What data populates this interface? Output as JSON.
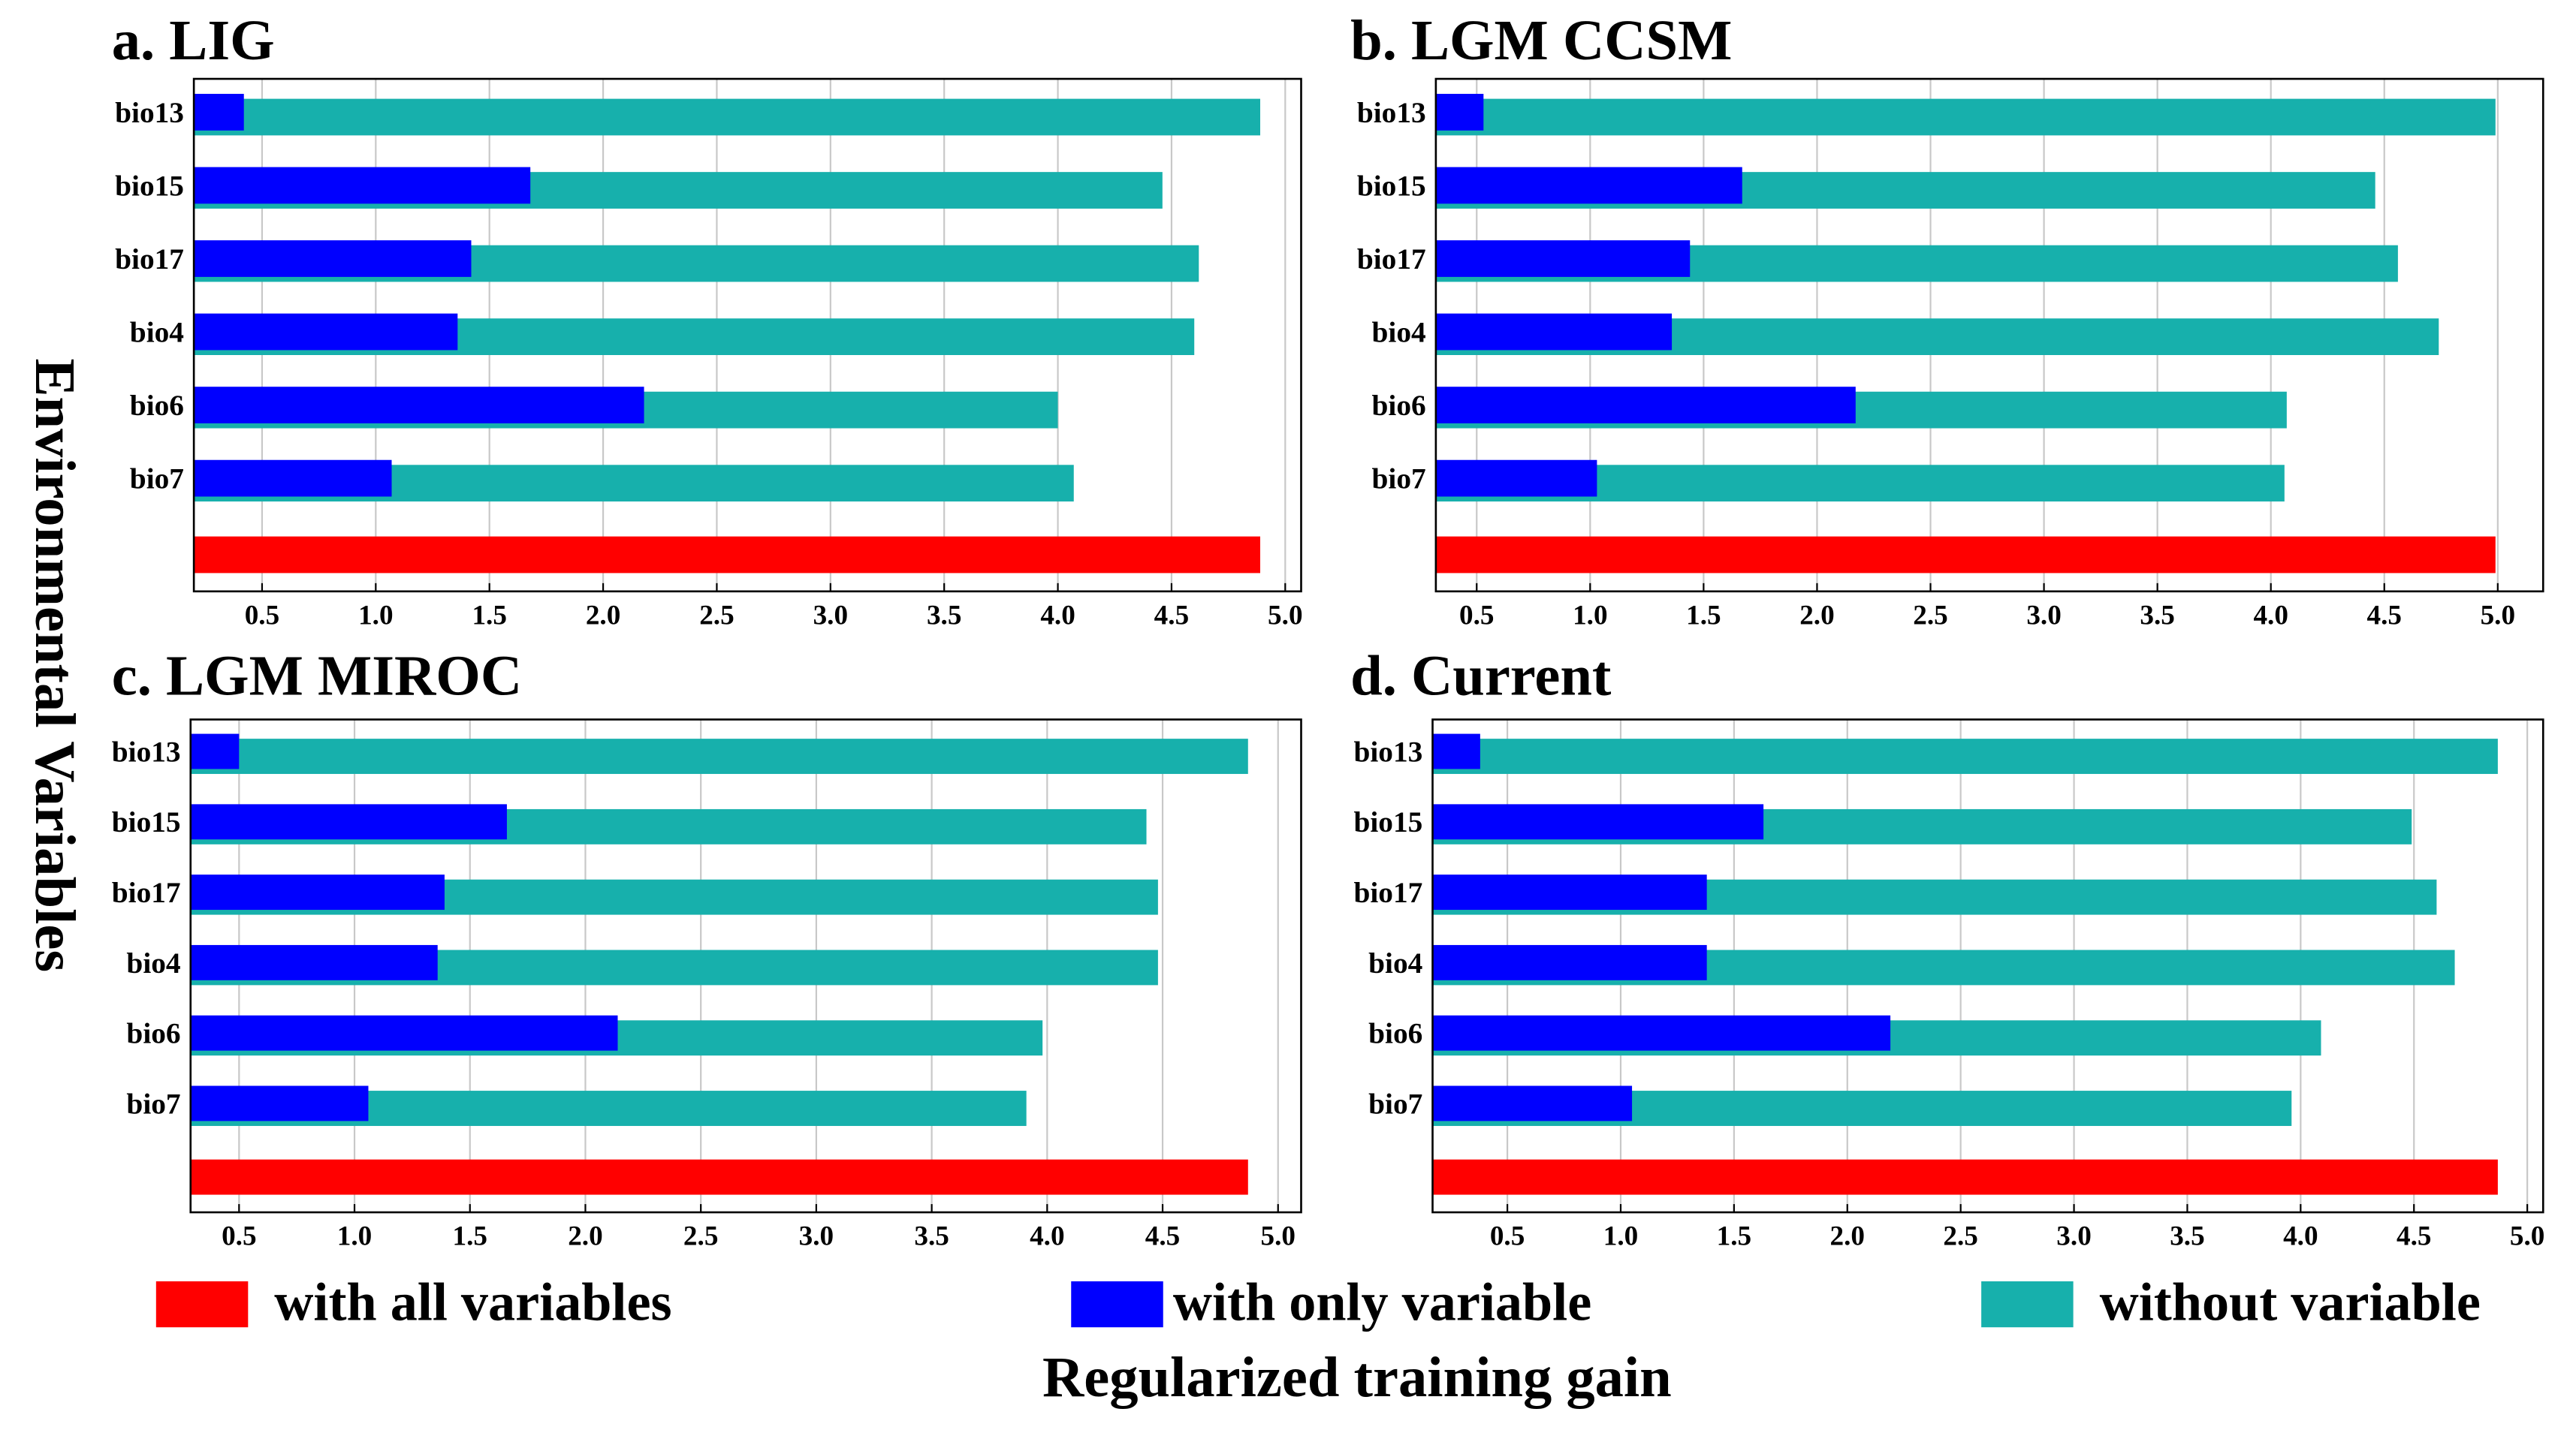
{
  "chart_data": [
    {
      "type": "barh",
      "title": "a. LIG",
      "categories": [
        "bio13",
        "bio15",
        "bio17",
        "bio4",
        "bio6",
        "bio7",
        null
      ],
      "series": [
        {
          "name": "with all variables",
          "color": "#ff0000",
          "values": [
            null,
            null,
            null,
            null,
            null,
            null,
            4.89
          ]
        },
        {
          "name": "with only variable",
          "color": "#0000ff",
          "values": [
            0.42,
            1.68,
            1.42,
            1.36,
            2.18,
            1.07,
            null
          ]
        },
        {
          "name": "without variable",
          "color": "#17b0ac",
          "values": [
            4.89,
            4.46,
            4.62,
            4.6,
            4.0,
            4.07,
            null
          ]
        }
      ],
      "xlim": [
        0.2,
        5.07
      ],
      "xticks": [
        0.5,
        {
          "value": 1,
          "label": "1.0"
        },
        1.5,
        {
          "value": 2,
          "label": "2.0"
        },
        2.5,
        {
          "value": 3,
          "label": "3.0"
        },
        3.5,
        {
          "value": 4,
          "label": "4.0"
        },
        4.5,
        {
          "value": 5,
          "label": "5.0"
        }
      ],
      "grid": true
    },
    {
      "type": "barh",
      "title": "b. LGM CCSM",
      "categories": [
        "bio13",
        "bio15",
        "bio17",
        "bio4",
        "bio6",
        "bio7",
        null
      ],
      "series": [
        {
          "name": "with all variables",
          "color": "#ff0000",
          "values": [
            null,
            null,
            null,
            null,
            null,
            null,
            4.99
          ]
        },
        {
          "name": "with only variable",
          "color": "#0000ff",
          "values": [
            0.53,
            1.67,
            1.44,
            1.36,
            2.17,
            1.03,
            null
          ]
        },
        {
          "name": "without variable",
          "color": "#17b0ac",
          "values": [
            4.99,
            4.46,
            4.56,
            4.74,
            4.07,
            4.06,
            null
          ]
        }
      ],
      "xlim": [
        0.32,
        5.2
      ],
      "xticks": [
        0.5,
        {
          "value": 1,
          "label": "1.0"
        },
        1.5,
        {
          "value": 2,
          "label": "2.0"
        },
        2.5,
        {
          "value": 3,
          "label": "3.0"
        },
        3.5,
        {
          "value": 4,
          "label": "4.0"
        },
        4.5,
        {
          "value": 5,
          "label": "5.0"
        }
      ],
      "grid": true
    },
    {
      "type": "barh",
      "title": "c. LGM MIROC",
      "categories": [
        "bio13",
        "bio15",
        "bio17",
        "bio4",
        "bio6",
        "bio7",
        null
      ],
      "series": [
        {
          "name": "with all variables",
          "color": "#ff0000",
          "values": [
            null,
            null,
            null,
            null,
            null,
            null,
            4.87
          ]
        },
        {
          "name": "with only variable",
          "color": "#0000ff",
          "values": [
            0.5,
            1.66,
            1.39,
            1.36,
            2.14,
            1.06,
            null
          ]
        },
        {
          "name": "without variable",
          "color": "#17b0ac",
          "values": [
            4.87,
            4.43,
            4.48,
            4.48,
            3.98,
            3.91,
            null
          ]
        }
      ],
      "xlim": [
        0.29,
        5.1
      ],
      "xticks": [
        0.5,
        {
          "value": 1,
          "label": "1.0"
        },
        1.5,
        {
          "value": 2,
          "label": "2.0"
        },
        2.5,
        {
          "value": 3,
          "label": "3.0"
        },
        3.5,
        {
          "value": 4,
          "label": "4.0"
        },
        4.5,
        {
          "value": 5,
          "label": "5.0"
        }
      ],
      "grid": true
    },
    {
      "type": "barh",
      "title": "d. Current",
      "categories": [
        "bio13",
        "bio15",
        "bio17",
        "bio4",
        "bio6",
        "bio7",
        null
      ],
      "series": [
        {
          "name": "with all variables",
          "color": "#ff0000",
          "values": [
            null,
            null,
            null,
            null,
            null,
            null,
            4.87
          ]
        },
        {
          "name": "with only variable",
          "color": "#0000ff",
          "values": [
            0.38,
            1.63,
            1.38,
            1.38,
            2.19,
            1.05,
            null
          ]
        },
        {
          "name": "without variable",
          "color": "#17b0ac",
          "values": [
            4.87,
            4.49,
            4.6,
            4.68,
            4.09,
            3.96,
            null
          ]
        }
      ],
      "xlim": [
        0.17,
        5.07
      ],
      "xticks": [
        0.5,
        {
          "value": 1,
          "label": "1.0"
        },
        1.5,
        {
          "value": 2,
          "label": "2.0"
        },
        2.5,
        {
          "value": 3,
          "label": "3.0"
        },
        3.5,
        {
          "value": 4,
          "label": "4.0"
        },
        4.5,
        {
          "value": 5,
          "label": "5.0"
        }
      ],
      "grid": true
    }
  ],
  "xlabel": "Regularized training gain",
  "ylabel": "Environmental Variables"
}
